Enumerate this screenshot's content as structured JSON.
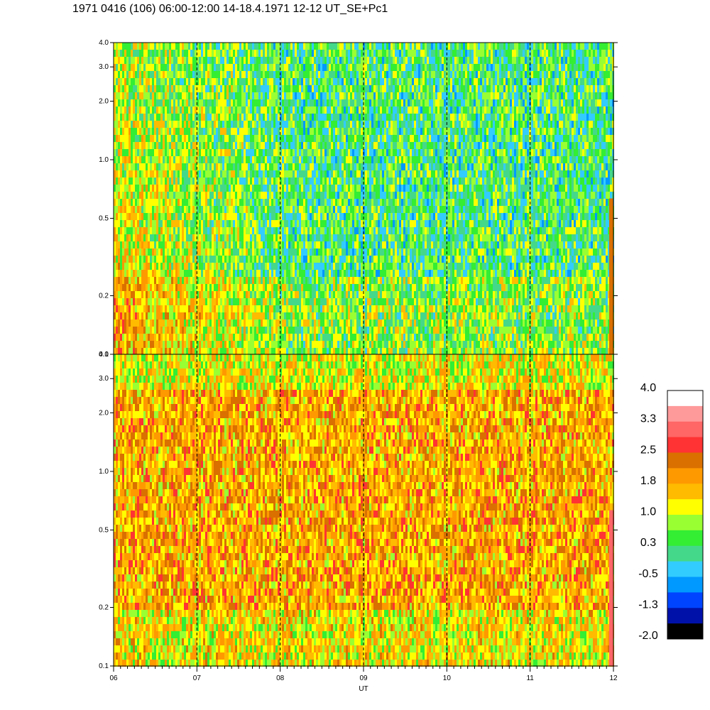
{
  "title": "1971 0416 (106) 06:00-12:00 14-18.4.1971  12-12 UT_SE+Pc1",
  "chart_data": {
    "type": "heatmap",
    "xlabel": "UT",
    "x_ticks": [
      "06",
      "07",
      "08",
      "09",
      "10",
      "11",
      "12"
    ],
    "x_range": [
      6,
      12
    ],
    "y_scale": "log",
    "y_range": [
      0.1,
      4.0
    ],
    "y_ticks": [
      "0.1",
      "0.2",
      "0.5",
      "1.0",
      "2.0",
      "3.0",
      "4.0"
    ],
    "y_tick_values": [
      0.1,
      0.2,
      0.5,
      1.0,
      2.0,
      3.0,
      4.0
    ],
    "dashed_vertical_lines_at": [
      7,
      8,
      9,
      10,
      11
    ],
    "panels": [
      {
        "name": "upper",
        "dominant_level": 0.3
      },
      {
        "name": "lower",
        "dominant_level": 1.8
      }
    ],
    "colorbar": {
      "labels": [
        "4.0",
        "3.3",
        "2.5",
        "1.8",
        "1.0",
        "0.3",
        "-0.5",
        "-1.3",
        "-2.0"
      ],
      "colors": [
        "#ffffff",
        "#ff9a9a",
        "#ff6666",
        "#ff3333",
        "#d97000",
        "#ff9900",
        "#ffbb00",
        "#ffff00",
        "#99ff33",
        "#33ee33",
        "#44d88a",
        "#33ccff",
        "#0099ff",
        "#0044ff",
        "#0011aa",
        "#000000"
      ]
    }
  }
}
